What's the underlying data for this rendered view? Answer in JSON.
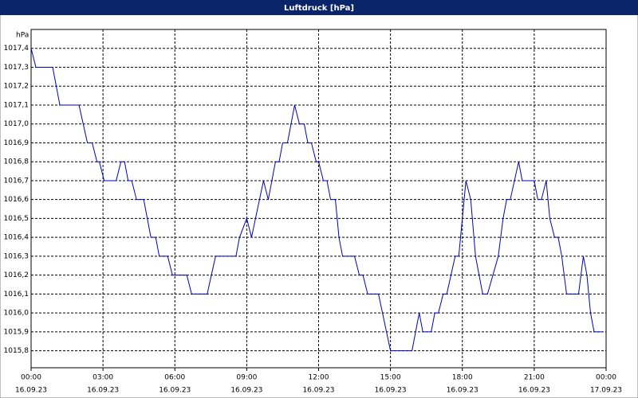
{
  "chart_data": {
    "type": "line",
    "title": "Luftdruck [hPa]",
    "y_unit": "hPa",
    "x": [
      0,
      0.2,
      0.9,
      1.2,
      2.0,
      2.35,
      2.55,
      2.75,
      2.85,
      3.05,
      3.55,
      3.75,
      3.9,
      4.05,
      4.2,
      4.4,
      4.7,
      5.0,
      5.2,
      5.35,
      5.7,
      5.9,
      6.5,
      6.7,
      7.35,
      7.7,
      8.55,
      8.7,
      9.0,
      9.2,
      9.7,
      9.9,
      10.2,
      10.35,
      10.5,
      10.7,
      11.0,
      11.2,
      11.4,
      11.55,
      11.7,
      11.9,
      12.0,
      12.2,
      12.35,
      12.5,
      12.7,
      12.85,
      13.0,
      13.5,
      13.7,
      13.85,
      14.05,
      14.5,
      15.0,
      15.9,
      16.2,
      16.35,
      16.7,
      16.85,
      17.0,
      17.2,
      17.35,
      17.7,
      17.85,
      18.15,
      18.35,
      18.55,
      18.85,
      19.05,
      19.5,
      19.7,
      19.85,
      20.0,
      20.35,
      20.5,
      21.0,
      21.15,
      21.3,
      21.5,
      21.65,
      21.85,
      22.0,
      22.15,
      22.35,
      22.85,
      23.05,
      23.2,
      23.35,
      23.5,
      23.85
    ],
    "series": [
      {
        "name": "Luftdruck",
        "color": "#0000c0",
        "values": [
          1017.4,
          1017.3,
          1017.3,
          1017.1,
          1017.1,
          1016.9,
          1016.9,
          1016.8,
          1016.8,
          1016.7,
          1016.7,
          1016.8,
          1016.8,
          1016.7,
          1016.7,
          1016.6,
          1016.6,
          1016.4,
          1016.4,
          1016.3,
          1016.3,
          1016.2,
          1016.2,
          1016.1,
          1016.1,
          1016.3,
          1016.3,
          1016.4,
          1016.5,
          1016.4,
          1016.7,
          1016.6,
          1016.8,
          1016.8,
          1016.9,
          1016.9,
          1017.1,
          1017.0,
          1017.0,
          1016.9,
          1016.9,
          1016.8,
          1016.8,
          1016.7,
          1016.7,
          1016.6,
          1016.6,
          1016.4,
          1016.3,
          1016.3,
          1016.2,
          1016.2,
          1016.1,
          1016.1,
          1015.8,
          1015.8,
          1016.0,
          1015.9,
          1015.9,
          1016.0,
          1016.0,
          1016.1,
          1016.1,
          1016.3,
          1016.3,
          1016.7,
          1016.6,
          1016.3,
          1016.1,
          1016.1,
          1016.3,
          1016.5,
          1016.6,
          1016.6,
          1016.8,
          1016.7,
          1016.7,
          1016.6,
          1016.6,
          1016.7,
          1016.5,
          1016.4,
          1016.4,
          1016.3,
          1016.1,
          1016.1,
          1016.3,
          1016.2,
          1016.0,
          1015.9,
          1015.9
        ]
      }
    ],
    "xlim": [
      0,
      24
    ],
    "xticks": [
      {
        "value": 0,
        "label": "00:00"
      },
      {
        "value": 3,
        "label": "03:00"
      },
      {
        "value": 6,
        "label": "06:00"
      },
      {
        "value": 9,
        "label": "09:00"
      },
      {
        "value": 12,
        "label": "12:00"
      },
      {
        "value": 15,
        "label": "15:00"
      },
      {
        "value": 18,
        "label": "18:00"
      },
      {
        "value": 21,
        "label": "21:00"
      },
      {
        "value": 24,
        "label": "00:00"
      }
    ],
    "xtick_dates": [
      "16.09.23",
      "16.09.23",
      "16.09.23",
      "16.09.23",
      "16.09.23",
      "16.09.23",
      "16.09.23",
      "16.09.23",
      "17.09.23"
    ],
    "ylim": [
      1015.71,
      1017.5
    ],
    "yticks": [
      {
        "value": 1015.8,
        "label": "1015,8"
      },
      {
        "value": 1015.9,
        "label": "1015,9"
      },
      {
        "value": 1016.0,
        "label": "1016,0"
      },
      {
        "value": 1016.1,
        "label": "1016,1"
      },
      {
        "value": 1016.2,
        "label": "1016,2"
      },
      {
        "value": 1016.3,
        "label": "1016,3"
      },
      {
        "value": 1016.4,
        "label": "1016,4"
      },
      {
        "value": 1016.5,
        "label": "1016,5"
      },
      {
        "value": 1016.6,
        "label": "1016,6"
      },
      {
        "value": 1016.7,
        "label": "1016,7"
      },
      {
        "value": 1016.8,
        "label": "1016,8"
      },
      {
        "value": 1016.9,
        "label": "1016,9"
      },
      {
        "value": 1017.0,
        "label": "1017,0"
      },
      {
        "value": 1017.1,
        "label": "1017,1"
      },
      {
        "value": 1017.2,
        "label": "1017,2"
      },
      {
        "value": 1017.3,
        "label": "1017,3"
      },
      {
        "value": 1017.4,
        "label": "1017,4"
      }
    ],
    "grid": true
  }
}
